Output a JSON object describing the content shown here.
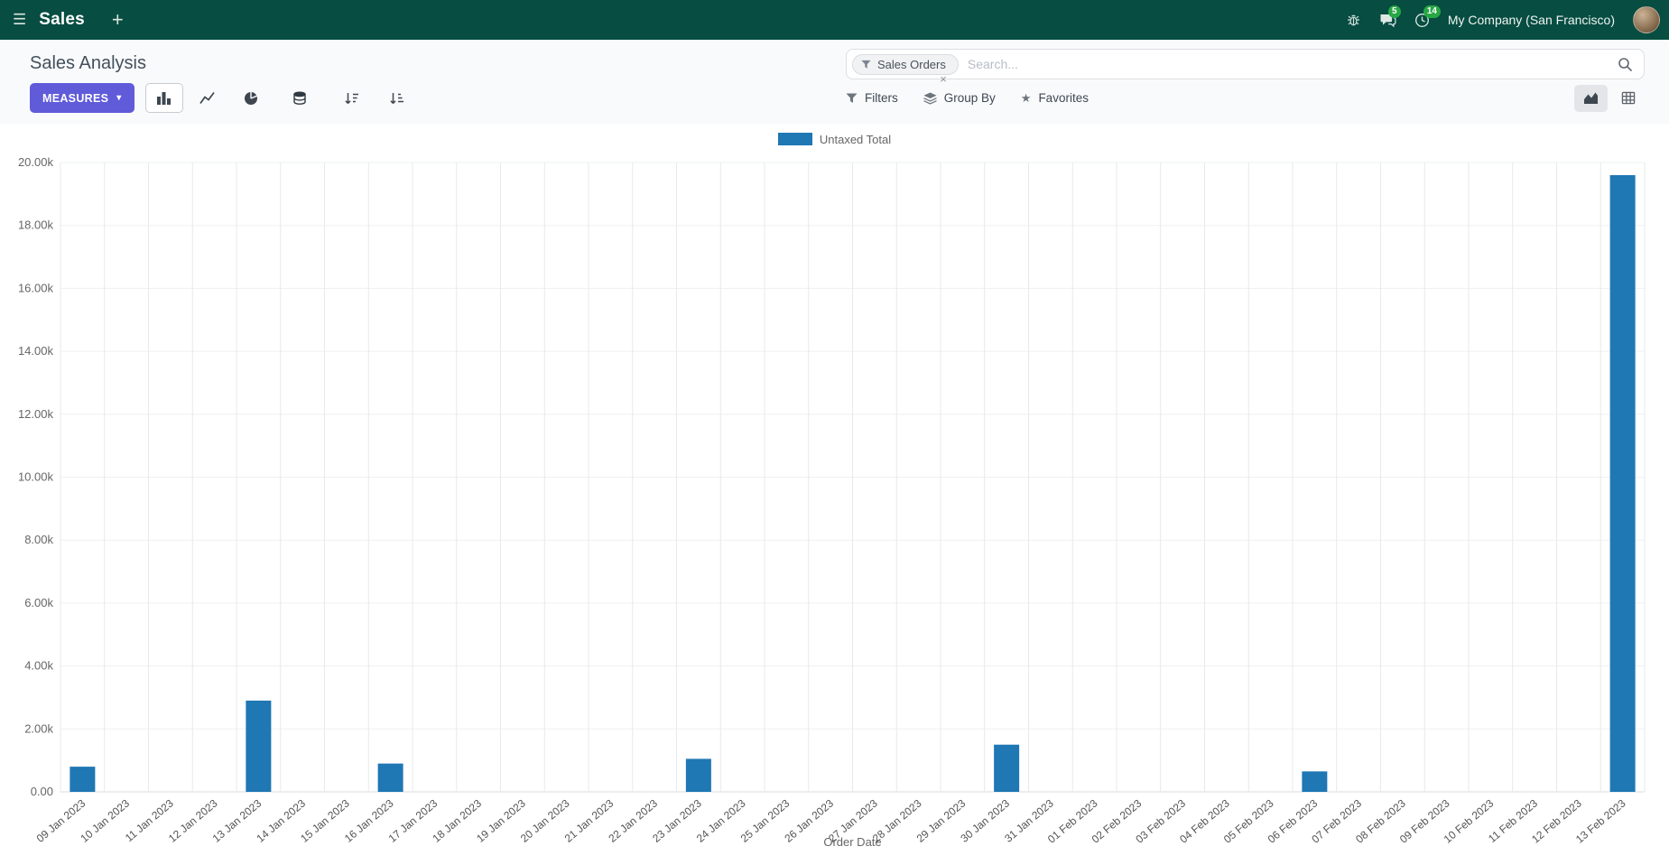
{
  "colors": {
    "navbar": "#074d41",
    "primary": "#5f5bd9",
    "badge": "#28a745",
    "bar": "#1f77b4"
  },
  "icons": {
    "hamburger": "☰",
    "plus": "+",
    "caret": "▾",
    "star": "★"
  },
  "header": {
    "app_name": "Sales",
    "company": "My Company (San Francisco)",
    "messages_badge": "5",
    "activities_badge": "14"
  },
  "control_panel": {
    "title": "Sales Analysis",
    "search": {
      "facet_label": "Sales Orders",
      "facet_remove": "×",
      "placeholder": "Search..."
    },
    "measures_label": "MEASURES",
    "filters_label": "Filters",
    "group_by_label": "Group By",
    "favorites_label": "Favorites"
  },
  "chart_data": {
    "type": "bar",
    "title": "",
    "xlabel": "Order Date",
    "ylabel": "",
    "ylim": [
      0,
      20000
    ],
    "grid": true,
    "legend_position": "top",
    "ytick_labels": [
      "0.00",
      "2.00k",
      "4.00k",
      "6.00k",
      "8.00k",
      "10.00k",
      "12.00k",
      "14.00k",
      "16.00k",
      "18.00k",
      "20.00k"
    ],
    "categories": [
      "09 Jan 2023",
      "10 Jan 2023",
      "11 Jan 2023",
      "12 Jan 2023",
      "13 Jan 2023",
      "14 Jan 2023",
      "15 Jan 2023",
      "16 Jan 2023",
      "17 Jan 2023",
      "18 Jan 2023",
      "19 Jan 2023",
      "20 Jan 2023",
      "21 Jan 2023",
      "22 Jan 2023",
      "23 Jan 2023",
      "24 Jan 2023",
      "25 Jan 2023",
      "26 Jan 2023",
      "27 Jan 2023",
      "28 Jan 2023",
      "29 Jan 2023",
      "30 Jan 2023",
      "31 Jan 2023",
      "01 Feb 2023",
      "02 Feb 2023",
      "03 Feb 2023",
      "04 Feb 2023",
      "05 Feb 2023",
      "06 Feb 2023",
      "07 Feb 2023",
      "08 Feb 2023",
      "09 Feb 2023",
      "10 Feb 2023",
      "11 Feb 2023",
      "12 Feb 2023",
      "13 Feb 2023"
    ],
    "series": [
      {
        "name": "Untaxed Total",
        "color": "#1f77b4",
        "values": [
          800,
          0,
          0,
          0,
          2900,
          0,
          0,
          900,
          0,
          0,
          0,
          0,
          0,
          0,
          1050,
          0,
          0,
          0,
          0,
          0,
          0,
          1500,
          0,
          0,
          0,
          0,
          0,
          0,
          650,
          0,
          0,
          0,
          0,
          0,
          0,
          19600
        ]
      }
    ]
  }
}
